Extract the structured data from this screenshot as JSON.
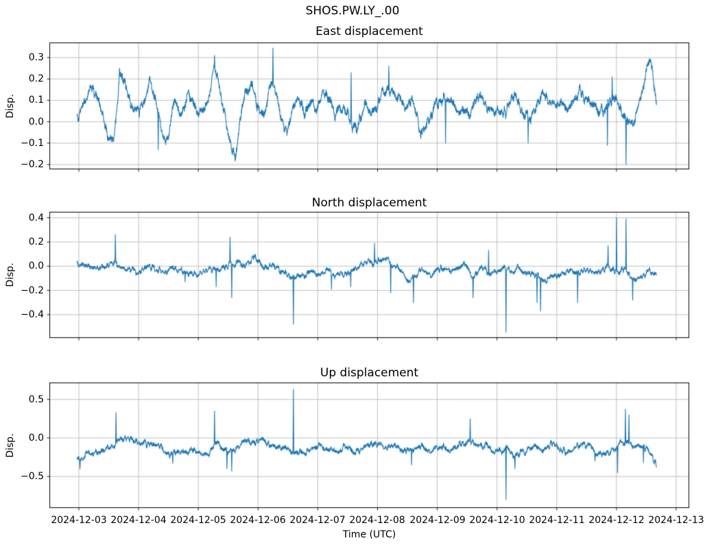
{
  "figure": {
    "suptitle": "SHOS.PW.LY_.00",
    "background_color": "#ffffff",
    "text_color": "#000000",
    "grid_color": "#b0b0b0",
    "spine_color": "#000000"
  },
  "xaxis": {
    "label": "Time (UTC)",
    "tick_labels": [
      "2024-12-03",
      "2024-12-04",
      "2024-12-05",
      "2024-12-06",
      "2024-12-07",
      "2024-12-08",
      "2024-12-09",
      "2024-12-10",
      "2024-12-11",
      "2024-12-12",
      "2024-12-13"
    ],
    "tick_days": [
      0,
      1,
      2,
      3,
      4,
      5,
      6,
      7,
      8,
      9,
      10
    ]
  },
  "chart_data": [
    {
      "type": "line",
      "title": "East displacement",
      "ylabel": "Disp.",
      "line_color": "#1f77b4",
      "yticks": [
        0.3,
        0.2,
        0.1,
        0.0,
        -0.1,
        -0.2
      ],
      "ytick_labels": [
        "0.3",
        "0.2",
        "0.1",
        "0.0",
        "−0.1",
        "−0.2"
      ],
      "ylim": [
        -0.2224,
        0.3705
      ],
      "x_days_range": [
        -0.03,
        9.67
      ],
      "x_day_zero_label": "2024-12-03",
      "noise_sigma": 0.03,
      "seed": 7,
      "backbone": [
        [
          -0.03,
          0.05
        ],
        [
          0.08,
          0.1
        ],
        [
          0.2,
          0.15
        ],
        [
          0.32,
          0.08
        ],
        [
          0.42,
          -0.02
        ],
        [
          0.5,
          -0.1
        ],
        [
          0.58,
          -0.08
        ],
        [
          0.68,
          0.2
        ],
        [
          0.75,
          0.22
        ],
        [
          0.82,
          0.12
        ],
        [
          0.9,
          0.05
        ],
        [
          1.0,
          0.06
        ],
        [
          1.08,
          0.1
        ],
        [
          1.18,
          0.19
        ],
        [
          1.28,
          0.08
        ],
        [
          1.38,
          -0.05
        ],
        [
          1.45,
          -0.11
        ],
        [
          1.52,
          -0.02
        ],
        [
          1.6,
          0.14
        ],
        [
          1.68,
          0.07
        ],
        [
          1.78,
          0.09
        ],
        [
          1.88,
          0.11
        ],
        [
          1.98,
          0.04
        ],
        [
          2.08,
          0.05
        ],
        [
          2.18,
          0.13
        ],
        [
          2.27,
          0.29
        ],
        [
          2.35,
          0.16
        ],
        [
          2.45,
          0.04
        ],
        [
          2.55,
          -0.12
        ],
        [
          2.62,
          -0.18
        ],
        [
          2.7,
          0.02
        ],
        [
          2.78,
          0.13
        ],
        [
          2.88,
          0.15
        ],
        [
          2.98,
          0.06
        ],
        [
          3.08,
          0.04
        ],
        [
          3.18,
          0.13
        ],
        [
          3.28,
          0.16
        ],
        [
          3.38,
          0.02
        ],
        [
          3.48,
          -0.03
        ],
        [
          3.58,
          0.08
        ],
        [
          3.68,
          0.13
        ],
        [
          3.78,
          0.06
        ],
        [
          3.88,
          0.1
        ],
        [
          3.98,
          0.07
        ],
        [
          4.08,
          0.12
        ],
        [
          4.18,
          0.09
        ],
        [
          4.28,
          0.04
        ],
        [
          4.38,
          0.09
        ],
        [
          4.48,
          0.03
        ],
        [
          4.58,
          -0.04
        ],
        [
          4.68,
          -0.02
        ],
        [
          4.78,
          0.08
        ],
        [
          4.88,
          0.04
        ],
        [
          4.98,
          0.05
        ],
        [
          5.08,
          0.11
        ],
        [
          5.18,
          0.12
        ],
        [
          5.28,
          0.13
        ],
        [
          5.38,
          0.08
        ],
        [
          5.48,
          0.04
        ],
        [
          5.58,
          0.09
        ],
        [
          5.68,
          0.02
        ],
        [
          5.75,
          -0.04
        ],
        [
          5.85,
          0.03
        ],
        [
          5.95,
          0.09
        ],
        [
          6.05,
          0.11
        ],
        [
          6.15,
          0.13
        ],
        [
          6.25,
          0.09
        ],
        [
          6.35,
          0.06
        ],
        [
          6.45,
          0.09
        ],
        [
          6.55,
          0.06
        ],
        [
          6.65,
          0.09
        ],
        [
          6.75,
          0.11
        ],
        [
          6.85,
          0.07
        ],
        [
          6.95,
          0.06
        ],
        [
          7.05,
          0.04
        ],
        [
          7.15,
          0.05
        ],
        [
          7.25,
          0.1
        ],
        [
          7.35,
          0.06
        ],
        [
          7.45,
          0.03
        ],
        [
          7.55,
          0.01
        ],
        [
          7.65,
          0.05
        ],
        [
          7.78,
          0.16
        ],
        [
          7.88,
          0.1
        ],
        [
          7.98,
          0.08
        ],
        [
          8.08,
          0.11
        ],
        [
          8.18,
          0.07
        ],
        [
          8.28,
          0.1
        ],
        [
          8.38,
          0.12
        ],
        [
          8.48,
          0.1
        ],
        [
          8.58,
          0.11
        ],
        [
          8.68,
          0.08
        ],
        [
          8.78,
          0.06
        ],
        [
          8.88,
          0.09
        ],
        [
          8.98,
          0.11
        ],
        [
          9.08,
          0.07
        ],
        [
          9.18,
          0.03
        ],
        [
          9.28,
          -0.01
        ],
        [
          9.38,
          0.08
        ],
        [
          9.48,
          0.18
        ],
        [
          9.56,
          0.27
        ],
        [
          9.62,
          0.2
        ],
        [
          9.67,
          0.1
        ]
      ],
      "spikes": [
        [
          0.68,
          0.25
        ],
        [
          1.33,
          -0.13
        ],
        [
          2.27,
          0.31
        ],
        [
          3.25,
          0.345
        ],
        [
          4.56,
          0.23
        ],
        [
          5.19,
          0.26
        ],
        [
          6.14,
          -0.1
        ],
        [
          7.52,
          -0.1
        ],
        [
          8.85,
          -0.11
        ],
        [
          8.93,
          0.21
        ],
        [
          9.16,
          -0.2
        ]
      ]
    },
    {
      "type": "line",
      "title": "North displacement",
      "ylabel": "Disp.",
      "line_color": "#1f77b4",
      "yticks": [
        0.4,
        0.2,
        0.0,
        -0.2,
        -0.4
      ],
      "ytick_labels": [
        "0.4",
        "0.2",
        "0.0",
        "−0.2",
        "−0.4"
      ],
      "ylim": [
        -0.593,
        0.449
      ],
      "x_days_range": [
        -0.03,
        9.67
      ],
      "x_day_zero_label": "2024-12-03",
      "noise_sigma": 0.03,
      "seed": 13,
      "backbone": [
        [
          -0.03,
          0.01
        ],
        [
          0.2,
          0.0
        ],
        [
          0.4,
          0.03
        ],
        [
          0.6,
          0.05
        ],
        [
          0.8,
          0.01
        ],
        [
          1.0,
          -0.03
        ],
        [
          1.2,
          -0.01
        ],
        [
          1.4,
          -0.06
        ],
        [
          1.6,
          -0.04
        ],
        [
          1.8,
          -0.05
        ],
        [
          2.0,
          -0.05
        ],
        [
          2.2,
          -0.03
        ],
        [
          2.4,
          -0.01
        ],
        [
          2.6,
          0.01
        ],
        [
          2.8,
          0.04
        ],
        [
          2.95,
          0.06
        ],
        [
          3.1,
          0.0
        ],
        [
          3.3,
          -0.02
        ],
        [
          3.5,
          -0.04
        ],
        [
          3.7,
          -0.09
        ],
        [
          3.9,
          -0.05
        ],
        [
          4.1,
          -0.02
        ],
        [
          4.3,
          -0.05
        ],
        [
          4.5,
          -0.03
        ],
        [
          4.7,
          0.0
        ],
        [
          4.9,
          0.03
        ],
        [
          5.1,
          0.05
        ],
        [
          5.3,
          0.02
        ],
        [
          5.5,
          -0.1
        ],
        [
          5.7,
          -0.05
        ],
        [
          5.9,
          -0.04
        ],
        [
          6.1,
          -0.02
        ],
        [
          6.3,
          0.0
        ],
        [
          6.45,
          0.04
        ],
        [
          6.6,
          -0.08
        ],
        [
          6.75,
          0.02
        ],
        [
          6.9,
          -0.04
        ],
        [
          7.05,
          -0.03
        ],
        [
          7.2,
          -0.05
        ],
        [
          7.35,
          0.02
        ],
        [
          7.5,
          -0.06
        ],
        [
          7.65,
          -0.08
        ],
        [
          7.8,
          -0.1
        ],
        [
          7.95,
          -0.06
        ],
        [
          8.1,
          -0.05
        ],
        [
          8.25,
          -0.07
        ],
        [
          8.4,
          -0.08
        ],
        [
          8.55,
          -0.05
        ],
        [
          8.7,
          -0.02
        ],
        [
          8.85,
          0.0
        ],
        [
          9.0,
          -0.02
        ],
        [
          9.15,
          -0.04
        ],
        [
          9.3,
          -0.11
        ],
        [
          9.45,
          -0.06
        ],
        [
          9.55,
          -0.02
        ],
        [
          9.67,
          -0.03
        ]
      ],
      "spikes": [
        [
          0.61,
          0.26
        ],
        [
          1.78,
          -0.13
        ],
        [
          2.3,
          -0.17
        ],
        [
          2.53,
          0.24
        ],
        [
          2.56,
          -0.26
        ],
        [
          3.59,
          -0.48
        ],
        [
          4.23,
          -0.19
        ],
        [
          4.55,
          -0.17
        ],
        [
          4.95,
          0.19
        ],
        [
          5.22,
          -0.22
        ],
        [
          5.6,
          -0.3
        ],
        [
          6.6,
          -0.26
        ],
        [
          6.86,
          0.13
        ],
        [
          7.15,
          -0.545
        ],
        [
          7.67,
          -0.3
        ],
        [
          7.73,
          -0.37
        ],
        [
          8.35,
          -0.3
        ],
        [
          8.86,
          0.17
        ],
        [
          9.0,
          0.4
        ],
        [
          9.16,
          0.39
        ],
        [
          9.27,
          -0.28
        ]
      ]
    },
    {
      "type": "line",
      "title": "Up displacement",
      "ylabel": "Disp.",
      "line_color": "#1f77b4",
      "yticks": [
        0.5,
        0.0,
        -0.5
      ],
      "ytick_labels": [
        "0.5",
        "0.0",
        "−0.5"
      ],
      "ylim": [
        -0.909,
        0.72
      ],
      "x_days_range": [
        -0.03,
        9.67
      ],
      "x_day_zero_label": "2024-12-03",
      "noise_sigma": 0.05,
      "seed": 21,
      "backbone": [
        [
          -0.03,
          -0.3
        ],
        [
          0.08,
          -0.22
        ],
        [
          0.2,
          -0.18
        ],
        [
          0.35,
          -0.15
        ],
        [
          0.5,
          -0.12
        ],
        [
          0.65,
          -0.07
        ],
        [
          0.8,
          -0.03
        ],
        [
          0.95,
          -0.08
        ],
        [
          1.1,
          -0.05
        ],
        [
          1.25,
          -0.1
        ],
        [
          1.4,
          -0.16
        ],
        [
          1.55,
          -0.18
        ],
        [
          1.7,
          -0.15
        ],
        [
          1.85,
          -0.19
        ],
        [
          2.0,
          -0.16
        ],
        [
          2.15,
          -0.17
        ],
        [
          2.3,
          -0.12
        ],
        [
          2.45,
          -0.14
        ],
        [
          2.6,
          -0.17
        ],
        [
          2.75,
          -0.1
        ],
        [
          2.9,
          -0.03
        ],
        [
          3.0,
          0.0
        ],
        [
          3.1,
          -0.04
        ],
        [
          3.25,
          -0.09
        ],
        [
          3.4,
          -0.13
        ],
        [
          3.55,
          -0.17
        ],
        [
          3.7,
          -0.14
        ],
        [
          3.85,
          -0.19
        ],
        [
          4.0,
          -0.13
        ],
        [
          4.15,
          -0.16
        ],
        [
          4.3,
          -0.18
        ],
        [
          4.45,
          -0.13
        ],
        [
          4.6,
          -0.16
        ],
        [
          4.75,
          -0.11
        ],
        [
          4.9,
          -0.06
        ],
        [
          5.05,
          -0.09
        ],
        [
          5.2,
          -0.12
        ],
        [
          5.35,
          -0.11
        ],
        [
          5.5,
          -0.15
        ],
        [
          5.65,
          -0.13
        ],
        [
          5.8,
          -0.18
        ],
        [
          5.95,
          -0.15
        ],
        [
          6.1,
          -0.13
        ],
        [
          6.25,
          -0.15
        ],
        [
          6.4,
          -0.11
        ],
        [
          6.55,
          -0.09
        ],
        [
          6.7,
          -0.12
        ],
        [
          6.85,
          -0.11
        ],
        [
          7.0,
          -0.15
        ],
        [
          7.15,
          -0.13
        ],
        [
          7.3,
          -0.17
        ],
        [
          7.45,
          -0.15
        ],
        [
          7.6,
          -0.13
        ],
        [
          7.75,
          -0.15
        ],
        [
          7.9,
          -0.11
        ],
        [
          8.05,
          -0.13
        ],
        [
          8.2,
          -0.15
        ],
        [
          8.35,
          -0.11
        ],
        [
          8.5,
          -0.13
        ],
        [
          8.65,
          -0.16
        ],
        [
          8.8,
          -0.14
        ],
        [
          8.95,
          -0.1
        ],
        [
          9.1,
          -0.02
        ],
        [
          9.2,
          -0.05
        ],
        [
          9.3,
          -0.1
        ],
        [
          9.4,
          -0.12
        ],
        [
          9.5,
          -0.16
        ],
        [
          9.6,
          -0.24
        ],
        [
          9.67,
          -0.32
        ]
      ],
      "spikes": [
        [
          0.02,
          -0.4
        ],
        [
          0.62,
          0.33
        ],
        [
          1.57,
          -0.33
        ],
        [
          2.27,
          0.35
        ],
        [
          2.48,
          -0.4
        ],
        [
          2.56,
          -0.43
        ],
        [
          3.59,
          0.63
        ],
        [
          5.57,
          -0.35
        ],
        [
          6.55,
          0.25
        ],
        [
          7.15,
          -0.8
        ],
        [
          7.3,
          -0.4
        ],
        [
          8.64,
          -0.3
        ],
        [
          9.02,
          -0.45
        ],
        [
          9.15,
          0.37
        ],
        [
          9.21,
          0.3
        ],
        [
          9.45,
          -0.32
        ]
      ]
    }
  ]
}
